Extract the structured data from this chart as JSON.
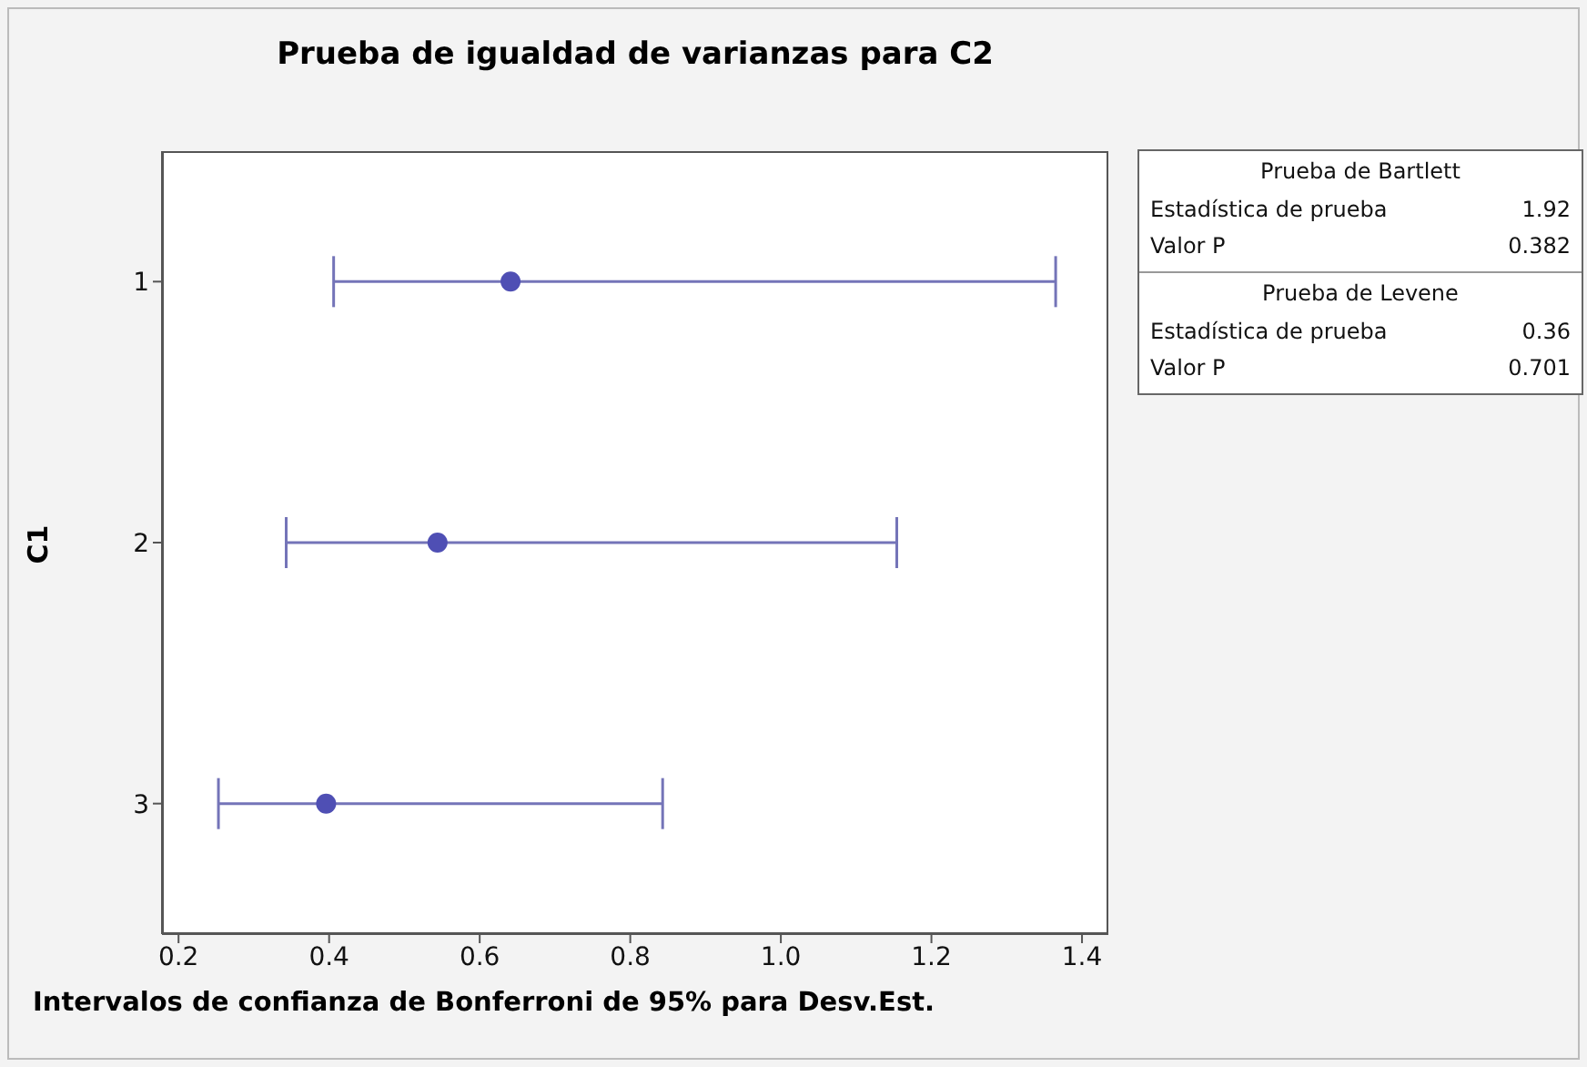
{
  "chart_data": {
    "type": "scatter",
    "orientation": "horizontal",
    "title": "Prueba de igualdad de varianzas para C2",
    "xlabel": "Intervalos de confianza de Bonferroni de 95% para Desv.Est.",
    "ylabel": "C1",
    "categories": [
      "1",
      "2",
      "3"
    ],
    "values": [
      0.641,
      0.544,
      0.396
    ],
    "errors": [
      [
        0.406,
        1.365
      ],
      [
        0.343,
        1.154
      ],
      [
        0.253,
        0.843
      ]
    ],
    "color": "#4f4fb4",
    "marker": "circle",
    "grid": false,
    "xlim": [
      0.178,
      1.435
    ],
    "xticks": [
      {
        "value": 0.2,
        "label": "0.2"
      },
      {
        "value": 0.4,
        "label": "0.4"
      },
      {
        "value": 0.6,
        "label": "0.6"
      },
      {
        "value": 0.8,
        "label": "0.8"
      },
      {
        "value": 1.0,
        "label": "1.0"
      },
      {
        "value": 1.2,
        "label": "1.2"
      },
      {
        "value": 1.4,
        "label": "1.4"
      }
    ],
    "annotations": [
      "Prueba de Bartlett",
      "Estadística de prueba",
      "1.92",
      "Valor P",
      "0.382",
      "Prueba de Levene",
      "Estadística de prueba",
      "0.36",
      "Valor P",
      "0.701"
    ]
  }
}
